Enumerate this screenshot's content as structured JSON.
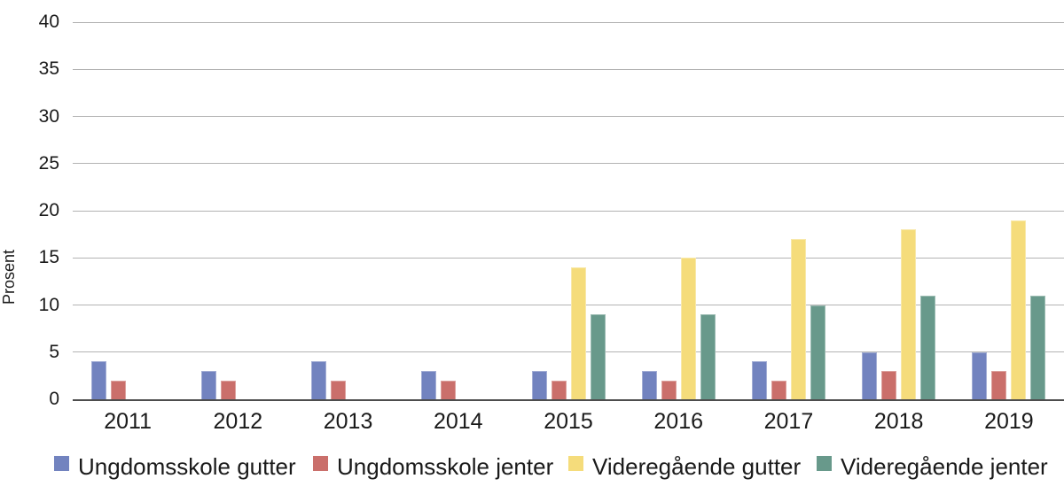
{
  "chart_data": {
    "type": "bar",
    "title": "",
    "ylabel": "Prosent",
    "xlabel": "",
    "ylim": [
      0,
      40
    ],
    "yticks": [
      0,
      5,
      10,
      15,
      20,
      25,
      30,
      35,
      40
    ],
    "grid": true,
    "legend_position": "bottom",
    "categories": [
      "2011",
      "2012",
      "2013",
      "2014",
      "2015",
      "2016",
      "2017",
      "2018",
      "2019"
    ],
    "series": [
      {
        "name": "Ungdomsskole gutter",
        "color": "#7283BF",
        "values": [
          4,
          3,
          4,
          3,
          3,
          3,
          4,
          5,
          5
        ]
      },
      {
        "name": "Ungdomsskole jenter",
        "color": "#CA6F6B",
        "values": [
          2,
          2,
          2,
          2,
          2,
          2,
          2,
          3,
          3
        ]
      },
      {
        "name": "Videregående gutter",
        "color": "#F5DC7B",
        "values": [
          null,
          null,
          null,
          null,
          14,
          15,
          17,
          18,
          19
        ]
      },
      {
        "name": "Videregående jenter",
        "color": "#68998B",
        "values": [
          null,
          null,
          null,
          null,
          9,
          9,
          10,
          11,
          11
        ]
      }
    ],
    "colors": {
      "gridline": "#b3b3b3",
      "axis_line": "#4d4d4d",
      "text": "#1a1a1a"
    }
  }
}
